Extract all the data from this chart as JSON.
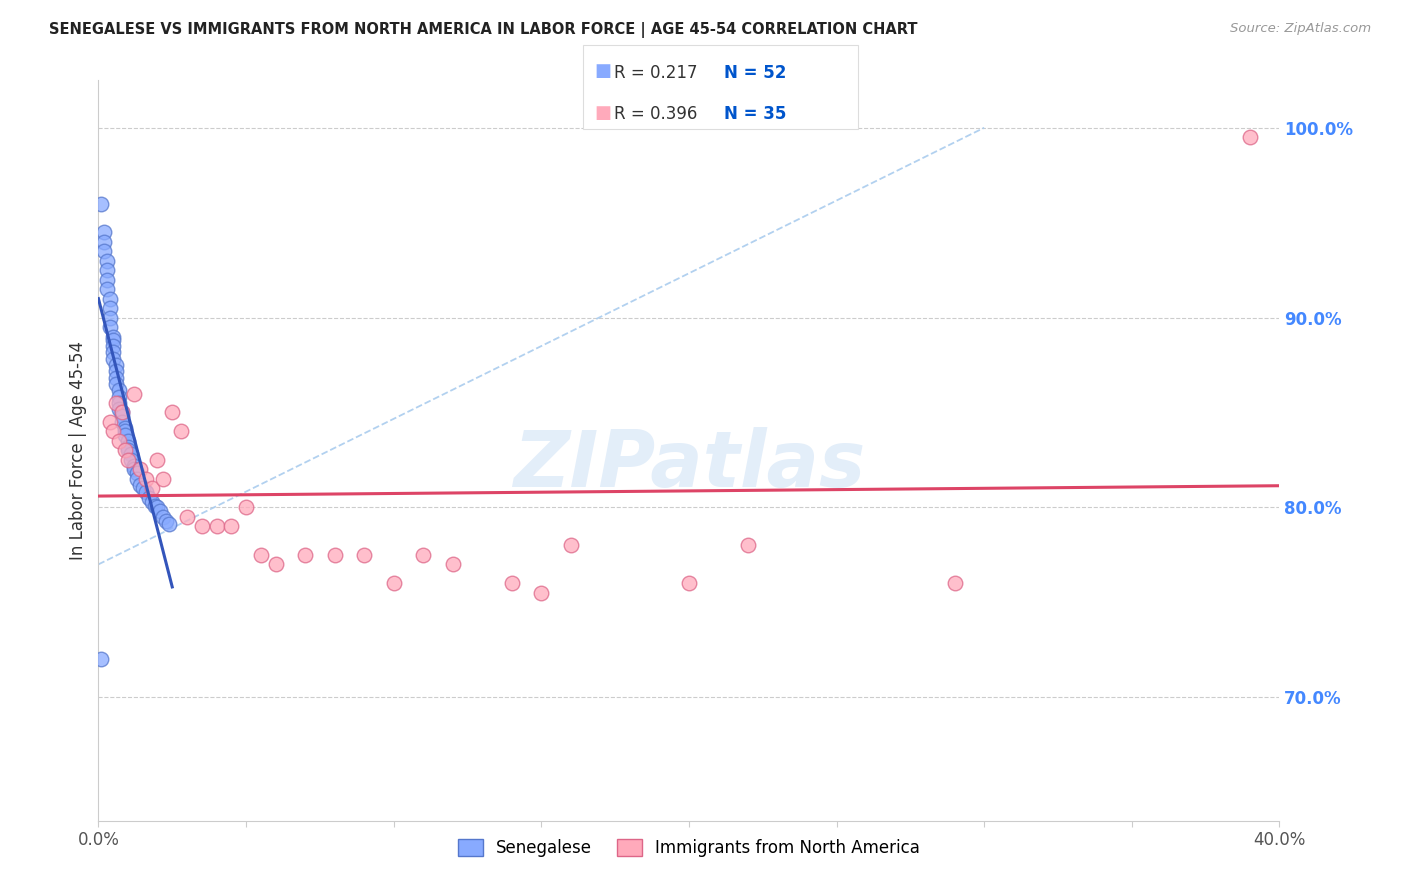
{
  "title": "SENEGALESE VS IMMIGRANTS FROM NORTH AMERICA IN LABOR FORCE | AGE 45-54 CORRELATION CHART",
  "source": "Source: ZipAtlas.com",
  "ylabel": "In Labor Force | Age 45-54",
  "xlim": [
    0.0,
    0.4
  ],
  "ylim": [
    0.635,
    1.025
  ],
  "xtick_positions": [
    0.0,
    0.05,
    0.1,
    0.15,
    0.2,
    0.25,
    0.3,
    0.35,
    0.4
  ],
  "xticklabels": [
    "0.0%",
    "",
    "",
    "",
    "",
    "",
    "",
    "",
    "40.0%"
  ],
  "yticks_right": [
    0.7,
    0.8,
    0.9,
    1.0
  ],
  "ytick_labels_right": [
    "70.0%",
    "80.0%",
    "90.0%",
    "100.0%"
  ],
  "grid_color": "#cccccc",
  "bg_color": "#ffffff",
  "blue_scatter_color": "#88aaff",
  "blue_scatter_edge": "#5577cc",
  "pink_scatter_color": "#ffaabb",
  "pink_scatter_edge": "#dd6688",
  "blue_line_color": "#3355bb",
  "pink_line_color": "#dd4466",
  "gray_dashed_color": "#aaaaaa",
  "legend_R_blue": "0.217",
  "legend_N_blue": "52",
  "legend_R_pink": "0.396",
  "legend_N_pink": "35",
  "legend_label_blue": "Senegalese",
  "legend_label_pink": "Immigrants from North America",
  "watermark": "ZIPatlas",
  "senegalese_x": [
    0.001,
    0.002,
    0.002,
    0.002,
    0.003,
    0.003,
    0.003,
    0.003,
    0.004,
    0.004,
    0.004,
    0.004,
    0.005,
    0.005,
    0.005,
    0.005,
    0.005,
    0.006,
    0.006,
    0.006,
    0.006,
    0.007,
    0.007,
    0.007,
    0.007,
    0.008,
    0.008,
    0.008,
    0.009,
    0.009,
    0.009,
    0.01,
    0.01,
    0.01,
    0.011,
    0.011,
    0.012,
    0.012,
    0.013,
    0.013,
    0.014,
    0.015,
    0.016,
    0.017,
    0.018,
    0.019,
    0.02,
    0.021,
    0.022,
    0.023,
    0.024,
    0.001
  ],
  "senegalese_y": [
    0.96,
    0.945,
    0.94,
    0.935,
    0.93,
    0.925,
    0.92,
    0.915,
    0.91,
    0.905,
    0.9,
    0.895,
    0.89,
    0.888,
    0.885,
    0.882,
    0.878,
    0.875,
    0.872,
    0.868,
    0.865,
    0.862,
    0.858,
    0.855,
    0.852,
    0.85,
    0.848,
    0.845,
    0.842,
    0.84,
    0.838,
    0.835,
    0.832,
    0.83,
    0.828,
    0.825,
    0.822,
    0.82,
    0.818,
    0.815,
    0.812,
    0.81,
    0.808,
    0.805,
    0.803,
    0.801,
    0.8,
    0.798,
    0.795,
    0.793,
    0.791,
    0.72
  ],
  "immigrants_x": [
    0.004,
    0.005,
    0.006,
    0.007,
    0.008,
    0.009,
    0.01,
    0.012,
    0.014,
    0.016,
    0.018,
    0.02,
    0.022,
    0.025,
    0.028,
    0.03,
    0.035,
    0.04,
    0.045,
    0.05,
    0.055,
    0.06,
    0.07,
    0.08,
    0.09,
    0.1,
    0.11,
    0.12,
    0.14,
    0.15,
    0.16,
    0.2,
    0.22,
    0.29,
    0.39
  ],
  "immigrants_y": [
    0.845,
    0.84,
    0.855,
    0.835,
    0.85,
    0.83,
    0.825,
    0.86,
    0.82,
    0.815,
    0.81,
    0.825,
    0.815,
    0.85,
    0.84,
    0.795,
    0.79,
    0.79,
    0.79,
    0.8,
    0.775,
    0.77,
    0.775,
    0.775,
    0.775,
    0.76,
    0.775,
    0.77,
    0.76,
    0.755,
    0.78,
    0.76,
    0.78,
    0.76,
    0.995
  ]
}
